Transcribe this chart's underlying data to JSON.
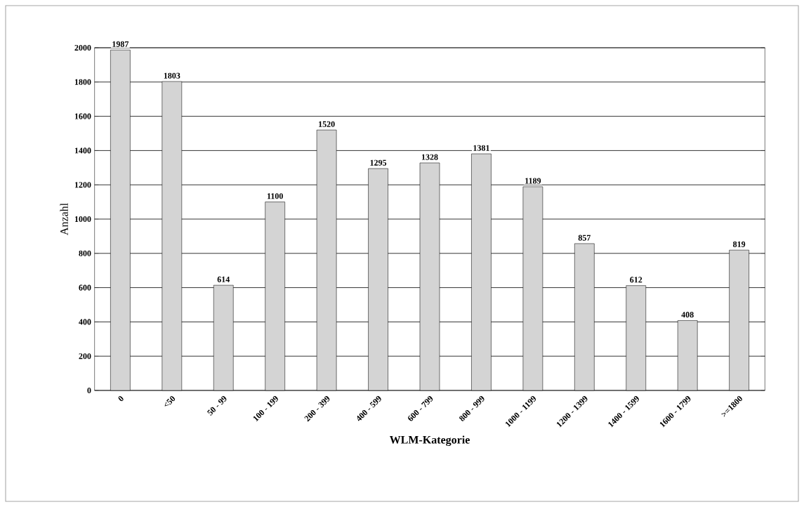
{
  "chart_data": {
    "type": "bar",
    "xlabel": "WLM-Kategorie",
    "ylabel": "Anzahl",
    "categories": [
      "0",
      "<50",
      "50 - 99",
      "100 - 199",
      "200 - 399",
      "400 - 599",
      "600 - 799",
      "800 - 999",
      "1000 - 1199",
      "1200 - 1399",
      "1400 - 1599",
      "1600 - 1799",
      ">=1800"
    ],
    "values": [
      1987,
      1803,
      614,
      1100,
      1520,
      1295,
      1328,
      1381,
      1189,
      857,
      612,
      408,
      819
    ],
    "color": "#d4d4d4",
    "ylim": [
      0,
      2000
    ],
    "yticks": [
      0,
      200,
      400,
      600,
      800,
      1000,
      1200,
      1400,
      1600,
      1800,
      2000
    ],
    "grid": "y",
    "data_labels": true
  }
}
